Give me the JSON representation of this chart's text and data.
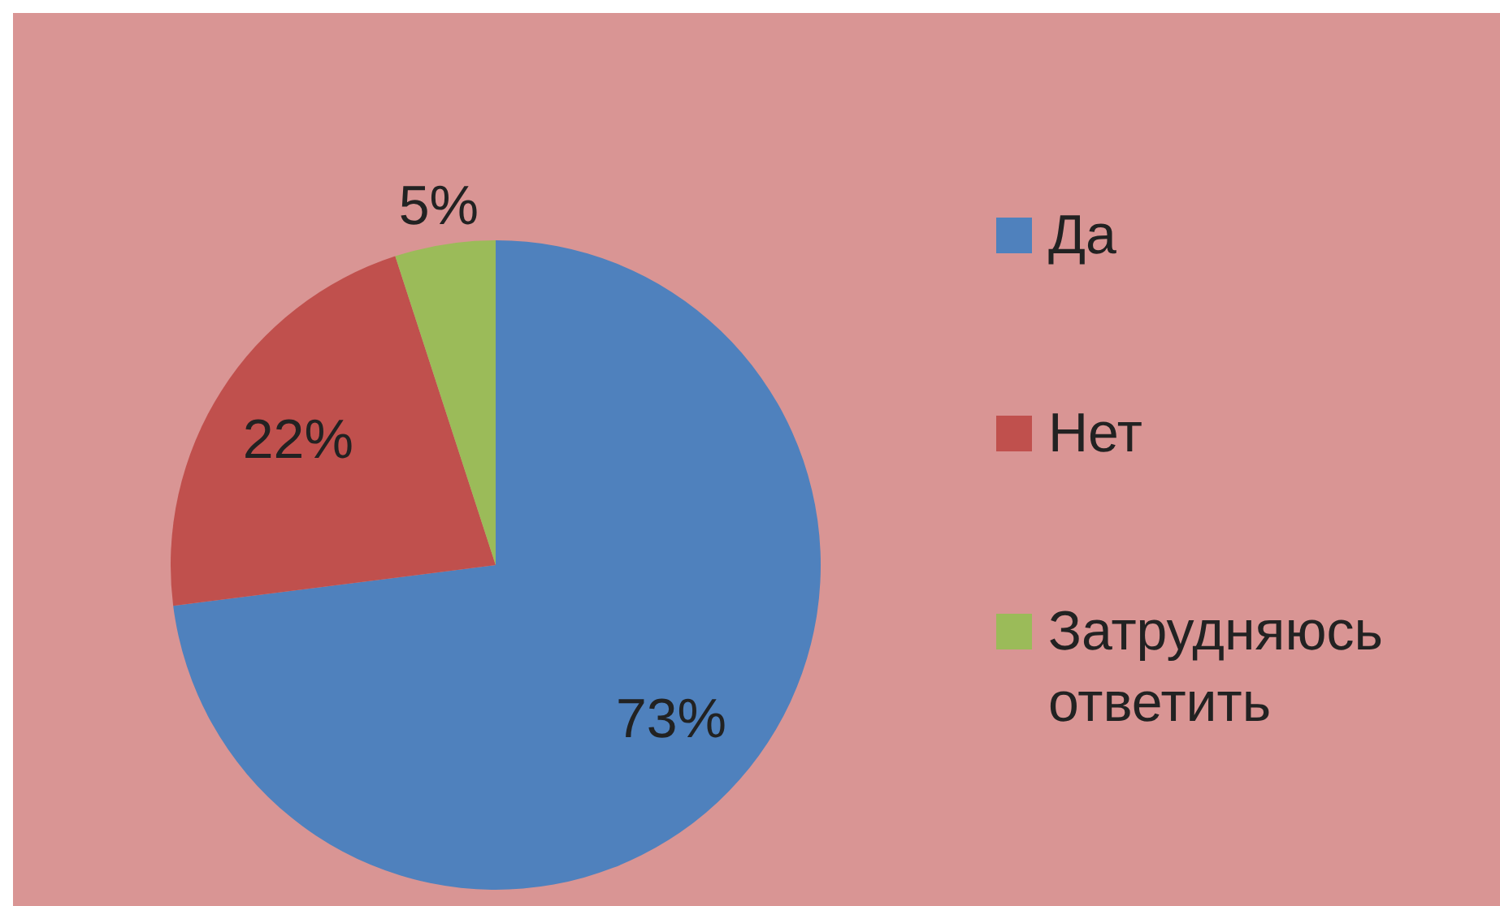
{
  "chart_data": {
    "type": "pie",
    "categories": [
      "Да",
      "Нет",
      "Затрудняюсь ответить"
    ],
    "values": [
      73,
      22,
      5
    ],
    "colors": [
      "#4f81bd",
      "#c0504d",
      "#9bbb59"
    ],
    "value_labels": [
      "73%",
      "22%",
      "5%"
    ],
    "legend": "right"
  }
}
